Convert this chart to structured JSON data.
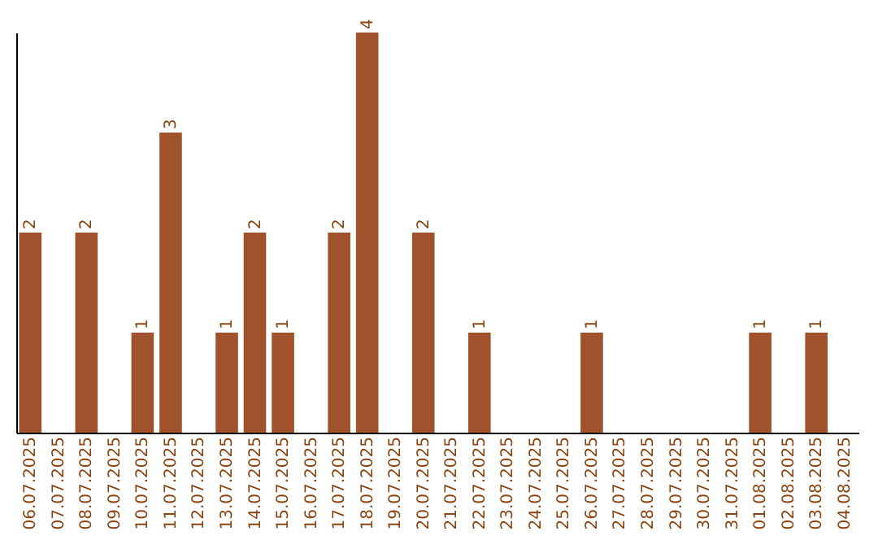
{
  "chart_data": {
    "type": "bar",
    "categories": [
      "06.07.2025",
      "07.07.2025",
      "08.07.2025",
      "09.07.2025",
      "10.07.2025",
      "11.07.2025",
      "12.07.2025",
      "13.07.2025",
      "14.07.2025",
      "15.07.2025",
      "16.07.2025",
      "17.07.2025",
      "18.07.2025",
      "19.07.2025",
      "20.07.2025",
      "21.07.2025",
      "22.07.2025",
      "23.07.2025",
      "24.07.2025",
      "25.07.2025",
      "26.07.2025",
      "27.07.2025",
      "28.07.2025",
      "29.07.2025",
      "30.07.2025",
      "31.07.2025",
      "01.08.2025",
      "02.08.2025",
      "03.08.2025",
      "04.08.2025"
    ],
    "values": [
      2,
      null,
      2,
      null,
      1,
      3,
      null,
      1,
      2,
      1,
      null,
      2,
      4,
      null,
      2,
      null,
      1,
      null,
      null,
      null,
      1,
      null,
      null,
      null,
      null,
      null,
      1,
      null,
      1,
      null
    ],
    "color": "#a0522d",
    "data_labels": true,
    "tick_labels": "x"
  }
}
